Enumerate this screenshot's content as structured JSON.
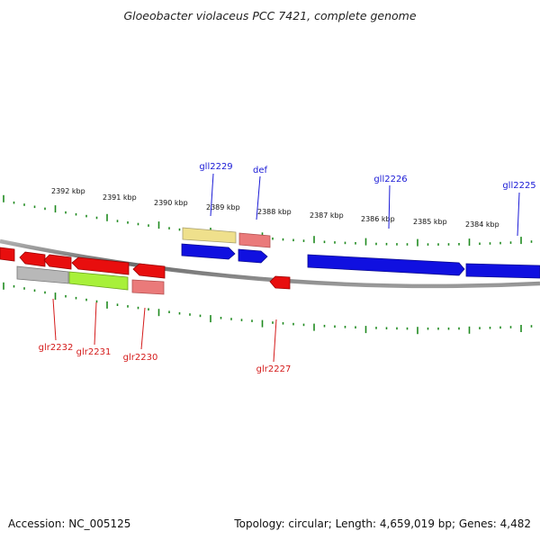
{
  "title": "Gloeobacter violaceus PCC 7421, complete genome",
  "footer": {
    "accession": "Accession: NC_005125",
    "summary": "Topology: circular; Length: 4,659,019 bp; Genes: 4,482"
  },
  "scale_labels": [
    "2392 kbp",
    "2391 kbp",
    "2390 kbp",
    "2389 kbp",
    "2388 kbp",
    "2387 kbp",
    "2386 kbp",
    "2385 kbp",
    "2384 kbp"
  ],
  "gene_labels": {
    "top": [
      "gll2229",
      "def",
      "gll2226",
      "gll2225"
    ],
    "bottom": [
      "glr2232",
      "glr2231",
      "glr2230",
      "glr2227"
    ]
  },
  "colors": {
    "backbone": "#7a7a7a",
    "tick": "#1f8a1f",
    "forward_label": "#1a1ad6",
    "reverse_label": "#d41a1a",
    "forward_gene": "#1010e0",
    "reverse_gene": "#e80e0e",
    "yellow_feature": "#efe08c",
    "salmon_feature": "#ea7a7a",
    "grey_feature": "#b8b8b8",
    "lime_feature": "#a8f03a"
  }
}
